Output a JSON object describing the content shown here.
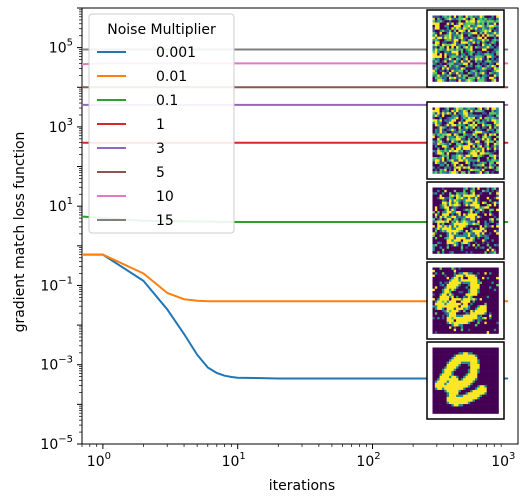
{
  "chart_data": {
    "type": "line",
    "xlabel": "iterations",
    "ylabel": "gradient match loss function",
    "x_scale": "log",
    "y_scale": "log",
    "xlim": [
      0.7,
      1200
    ],
    "ylim": [
      1e-05,
      1000000.0
    ],
    "grid": false,
    "legend": {
      "title": "Noise Multiplier",
      "placement": "top-left"
    },
    "x_ticks": [
      {
        "value": 1,
        "base": "10",
        "exp": "0"
      },
      {
        "value": 10,
        "base": "10",
        "exp": "1"
      },
      {
        "value": 100,
        "base": "10",
        "exp": "2"
      },
      {
        "value": 1000,
        "base": "10",
        "exp": "3"
      }
    ],
    "y_ticks": [
      {
        "value": 1e-05,
        "base": "10",
        "exp": "−5"
      },
      {
        "value": 0.001,
        "base": "10",
        "exp": "−3"
      },
      {
        "value": 0.1,
        "base": "10",
        "exp": "−1"
      },
      {
        "value": 10,
        "base": "10",
        "exp": "1"
      },
      {
        "value": 1000,
        "base": "10",
        "exp": "3"
      },
      {
        "value": 100000,
        "base": "10",
        "exp": "5"
      }
    ],
    "series": [
      {
        "name": "0.001",
        "color": "#1f77b4",
        "x": [
          0.7,
          1,
          2,
          3,
          4,
          5,
          6,
          7,
          8,
          9,
          10,
          15,
          20,
          30,
          50,
          100,
          200,
          500,
          1000
        ],
        "y": [
          0.6,
          0.6,
          0.13,
          0.025,
          0.006,
          0.0018,
          0.00085,
          0.00062,
          0.00053,
          0.00049,
          0.00047,
          0.00046,
          0.00045,
          0.00045,
          0.00045,
          0.00045,
          0.00045,
          0.00045,
          0.00045
        ]
      },
      {
        "name": "0.01",
        "color": "#ff7f0e",
        "x": [
          0.7,
          1,
          2,
          3,
          4,
          5,
          6,
          8,
          10,
          20,
          50,
          100,
          1000
        ],
        "y": [
          0.6,
          0.6,
          0.2,
          0.065,
          0.045,
          0.041,
          0.04,
          0.04,
          0.04,
          0.04,
          0.04,
          0.04,
          0.04
        ]
      },
      {
        "name": "0.1",
        "color": "#2ca02c",
        "x": [
          0.7,
          1,
          2,
          5,
          10,
          100,
          1000
        ],
        "y": [
          5.5,
          5.0,
          4.3,
          4.1,
          4.0,
          4.0,
          4.0
        ]
      },
      {
        "name": "1",
        "color": "#d62728",
        "x": [
          0.7,
          1000
        ],
        "y": [
          400,
          400
        ]
      },
      {
        "name": "3",
        "color": "#9467bd",
        "x": [
          0.7,
          1000
        ],
        "y": [
          3600,
          3600
        ]
      },
      {
        "name": "5",
        "color": "#8c564b",
        "x": [
          0.7,
          1000
        ],
        "y": [
          10000,
          10000
        ]
      },
      {
        "name": "10",
        "color": "#e377c2",
        "x": [
          0.7,
          1,
          2,
          10,
          1000
        ],
        "y": [
          38000,
          40000,
          40000,
          40000,
          40000
        ]
      },
      {
        "name": "15",
        "color": "#7f7f7f",
        "x": [
          0.7,
          1000
        ],
        "y": [
          90000,
          90000
        ]
      }
    ],
    "insets": [
      {
        "kind": "noise",
        "noise": 0.95
      },
      {
        "kind": "noise",
        "noise": 0.85
      },
      {
        "kind": "digit",
        "noise": 0.5
      },
      {
        "kind": "digit",
        "noise": 0.22
      },
      {
        "kind": "digit",
        "noise": 0.0
      }
    ]
  }
}
